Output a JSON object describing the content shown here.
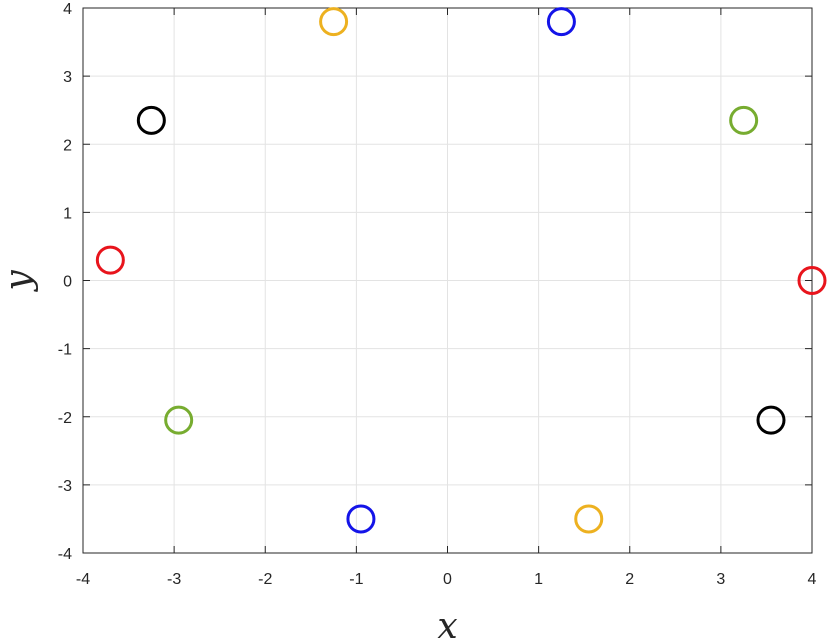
{
  "chart_data": {
    "type": "scatter",
    "xlabel": "x",
    "ylabel": "y",
    "xlim": [
      -4,
      4
    ],
    "ylim": [
      -4,
      4
    ],
    "xticks": [
      "-4",
      "-3",
      "-2",
      "-1",
      "0",
      "1",
      "2",
      "3",
      "4"
    ],
    "yticks": [
      "-4",
      "-3",
      "-2",
      "-1",
      "0",
      "1",
      "2",
      "3",
      "4"
    ],
    "grid": true,
    "marker": "open-circle",
    "points": [
      {
        "x": 4.0,
        "y": 0.0,
        "color": "#e8141c"
      },
      {
        "x": 3.25,
        "y": 2.35,
        "color": "#77ac30"
      },
      {
        "x": 1.25,
        "y": 3.8,
        "color": "#1414e8"
      },
      {
        "x": -1.25,
        "y": 3.8,
        "color": "#edb120"
      },
      {
        "x": -3.25,
        "y": 2.35,
        "color": "#000000"
      },
      {
        "x": -3.7,
        "y": 0.3,
        "color": "#e8141c"
      },
      {
        "x": -2.95,
        "y": -2.05,
        "color": "#77ac30"
      },
      {
        "x": -0.95,
        "y": -3.5,
        "color": "#1414e8"
      },
      {
        "x": 1.55,
        "y": -3.5,
        "color": "#edb120"
      },
      {
        "x": 3.55,
        "y": -2.05,
        "color": "#000000"
      }
    ]
  },
  "colors": {
    "grid": "#e3e3e3",
    "axis": "#262626",
    "background": "#ffffff"
  }
}
